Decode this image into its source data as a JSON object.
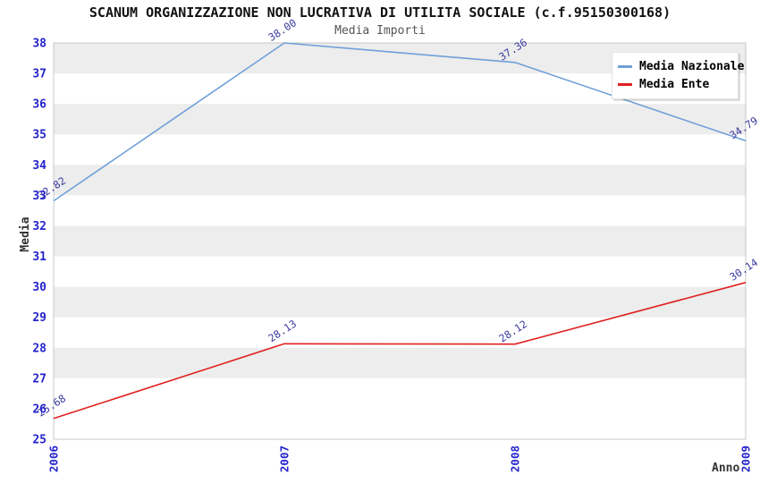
{
  "colors": {
    "background": "#ffffff",
    "title": "#111111",
    "subtitle": "#555555",
    "axis_title": "#333333",
    "tick_label": "#2323cc",
    "point_label": "#3a3a9e",
    "band": "#ededed",
    "plot_border": "#c8c8c8",
    "national_line": "#6fa0d8",
    "entity_line": "#e02020"
  },
  "chart_data": {
    "type": "line",
    "title": "SCANUM ORGANIZZAZIONE NON LUCRATIVA DI UTILITA SOCIALE (c.f.95150300168)",
    "subtitle": "Media Importi",
    "x": [
      "2006",
      "2007",
      "2008",
      "2009"
    ],
    "xlabel": "Anno",
    "ylabel": "Media",
    "ylim": [
      25,
      38
    ],
    "yticks": [
      25,
      26,
      27,
      28,
      29,
      30,
      31,
      32,
      33,
      34,
      35,
      36,
      37,
      38
    ],
    "grid": "alternating horizontal gray/white bands, 1-unit tall",
    "legend_position": "top-right",
    "legend": [
      "Media Nazionale",
      "Media Ente"
    ],
    "series": [
      {
        "name": "Media Nazionale",
        "color": "#6fa0d8",
        "values": [
          32.82,
          38.0,
          37.36,
          34.79
        ],
        "point_labels": [
          "32.82",
          "38.00",
          "37.36",
          "34.79"
        ]
      },
      {
        "name": "Media Ente",
        "color": "#e02020",
        "values": [
          25.68,
          28.13,
          28.12,
          30.14
        ],
        "point_labels": [
          "25.68",
          "28.13",
          "28.12",
          "30.14"
        ]
      }
    ]
  }
}
